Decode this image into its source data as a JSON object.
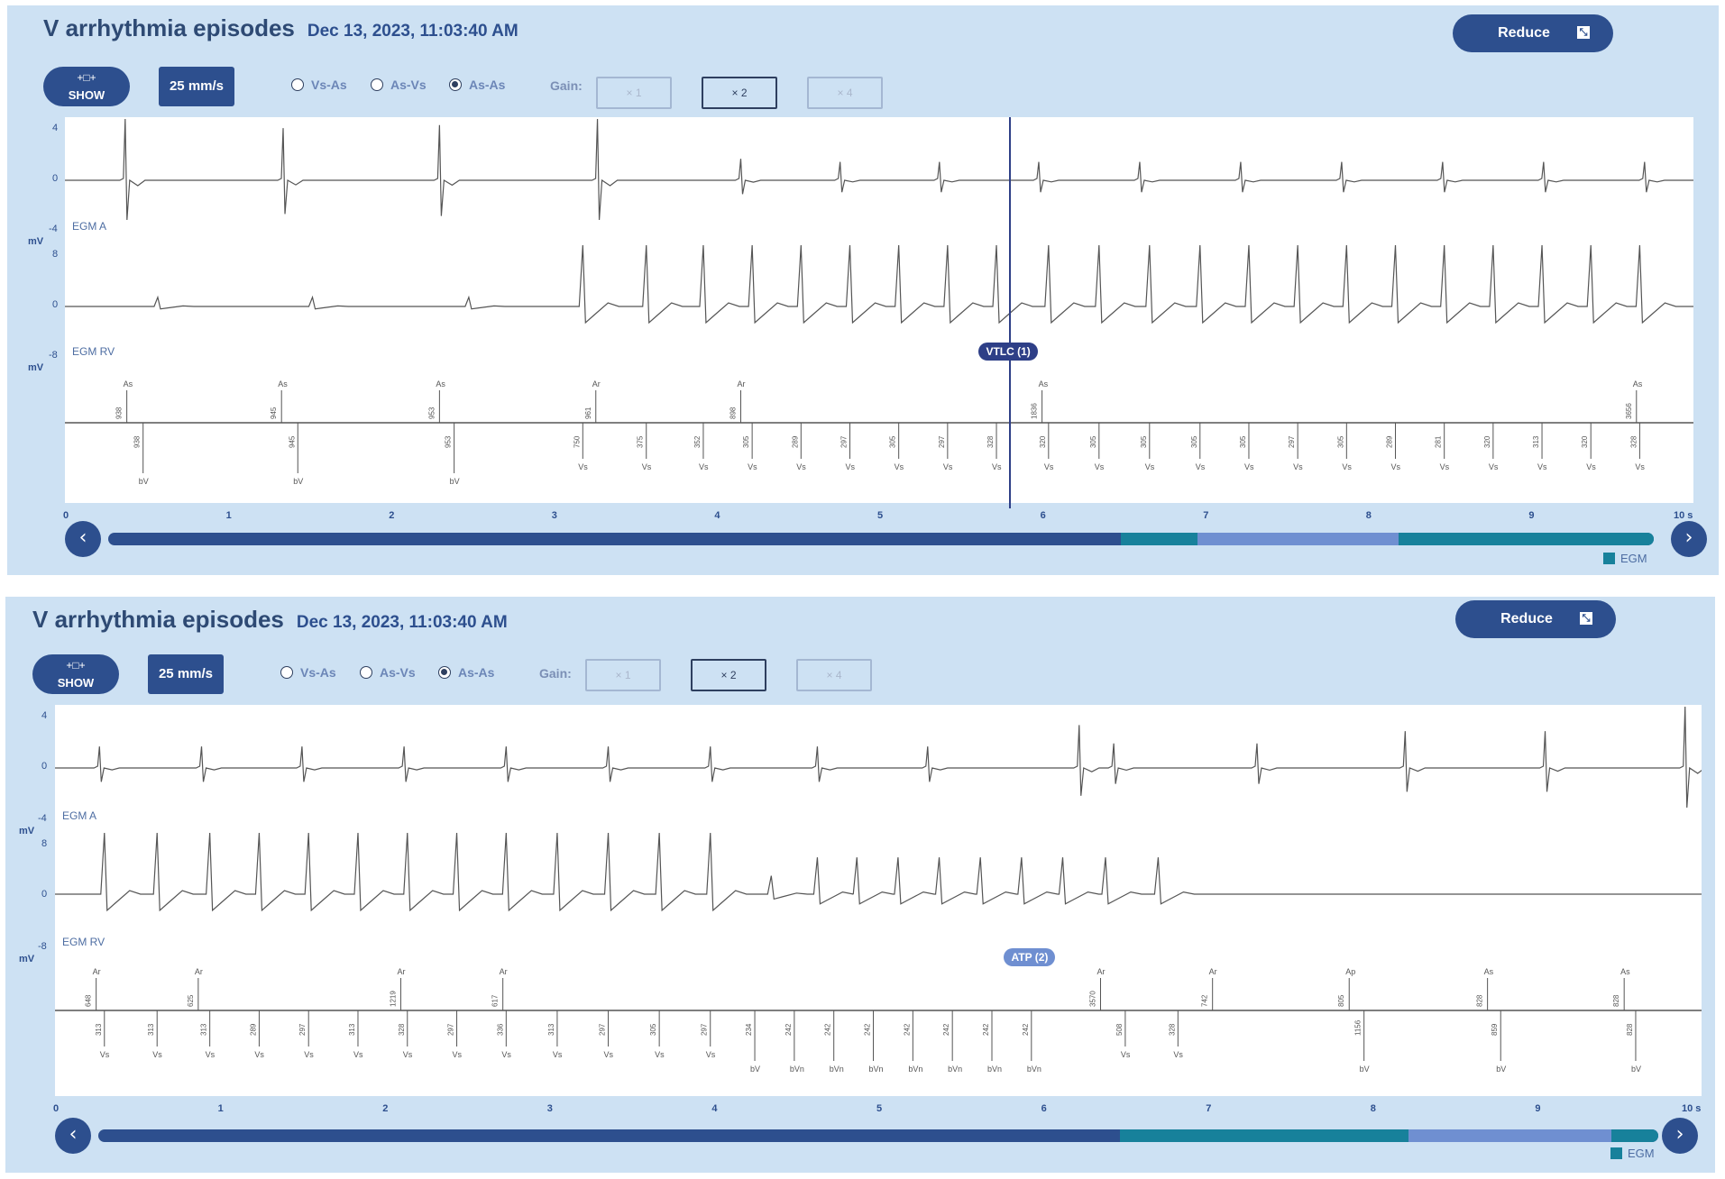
{
  "panels": [
    {
      "title": "V arrhythmia episodes",
      "datetime": "Dec 13, 2023, 11:03:40 AM",
      "reduce_label": "Reduce",
      "show_label": "SHOW",
      "speed": "25 mm/s",
      "radios": [
        {
          "label": "Vs-As",
          "selected": false
        },
        {
          "label": "As-Vs",
          "selected": false
        },
        {
          "label": "As-As",
          "selected": true
        }
      ],
      "gain_label": "Gain:",
      "gains": [
        {
          "label": "× 1",
          "selected": false
        },
        {
          "label": "× 2",
          "selected": true
        },
        {
          "label": "× 4",
          "selected": false
        }
      ],
      "egm_a": {
        "label": "EGM A",
        "unit": "mV",
        "ticks": [
          "4",
          "0",
          "-4"
        ]
      },
      "egm_rv": {
        "label": "EGM RV",
        "unit": "mV",
        "ticks": [
          "8",
          "0",
          "-8"
        ]
      },
      "episode_label": "VTLC (1)",
      "episode_time": 5.8,
      "time_ticks": [
        "0",
        "1",
        "2",
        "3",
        "4",
        "5",
        "6",
        "7",
        "8",
        "9",
        "10 s"
      ],
      "progress": {
        "dark_end": 0.655,
        "teal_end": 0.705,
        "light_end": 0.835
      },
      "legend": "EGM",
      "colors": {
        "panel": "#cde1f3",
        "accent": "#2d4f8e",
        "teal": "#17819b",
        "light": "#6f8fd1"
      },
      "atrial_beats": [
        0.37,
        1.34,
        2.3,
        3.27,
        4.15,
        4.76,
        5.37,
        5.98,
        6.6,
        7.22,
        7.84,
        8.46,
        9.08,
        9.7
      ],
      "atrial_amps": [
        1.0,
        0.85,
        0.9,
        1.0,
        0.35,
        0.3,
        0.3,
        0.3,
        0.3,
        0.3,
        0.3,
        0.3,
        0.3,
        0.3
      ],
      "rv_beats": [
        0.57,
        1.52,
        2.48,
        3.18,
        3.57,
        3.92,
        4.22,
        4.52,
        4.82,
        5.12,
        5.42,
        5.72,
        6.04,
        6.35,
        6.66,
        6.97,
        7.27,
        7.57,
        7.87,
        8.17,
        8.47,
        8.77,
        9.07,
        9.37,
        9.67
      ],
      "rv_amps": [
        0.15,
        0.15,
        0.15,
        1,
        1,
        1,
        1,
        1,
        1,
        1,
        1,
        1,
        1,
        1,
        1,
        1,
        1,
        1,
        1,
        1,
        1,
        1,
        1,
        1,
        1
      ],
      "markers_top": [
        {
          "t": 0.38,
          "label": "As",
          "val": "938"
        },
        {
          "t": 1.33,
          "label": "As",
          "val": "945"
        },
        {
          "t": 2.3,
          "label": "As",
          "val": "953"
        },
        {
          "t": 3.26,
          "label": "Ar",
          "val": "961"
        },
        {
          "t": 4.15,
          "label": "Ar",
          "val": "898"
        },
        {
          "t": 6.0,
          "label": "As",
          "val": "1836"
        },
        {
          "t": 9.65,
          "label": "As",
          "val": "3656"
        }
      ],
      "markers_bot": [
        {
          "t": 0.48,
          "label": "bV",
          "val": "938"
        },
        {
          "t": 1.43,
          "label": "bV",
          "val": "945"
        },
        {
          "t": 2.39,
          "label": "bV",
          "val": "953"
        },
        {
          "t": 3.18,
          "label": "Vs",
          "val": "750"
        },
        {
          "t": 3.57,
          "label": "Vs",
          "val": "375"
        },
        {
          "t": 3.92,
          "label": "Vs",
          "val": "352"
        },
        {
          "t": 4.22,
          "label": "Vs",
          "val": "305"
        },
        {
          "t": 4.52,
          "label": "Vs",
          "val": "289"
        },
        {
          "t": 4.82,
          "label": "Vs",
          "val": "297"
        },
        {
          "t": 5.12,
          "label": "Vs",
          "val": "305"
        },
        {
          "t": 5.42,
          "label": "Vs",
          "val": "297"
        },
        {
          "t": 5.72,
          "label": "Vs",
          "val": "328"
        },
        {
          "t": 6.04,
          "label": "Vs",
          "val": "320"
        },
        {
          "t": 6.35,
          "label": "Vs",
          "val": "305"
        },
        {
          "t": 6.66,
          "label": "Vs",
          "val": "305"
        },
        {
          "t": 6.97,
          "label": "Vs",
          "val": "305"
        },
        {
          "t": 7.27,
          "label": "Vs",
          "val": "305"
        },
        {
          "t": 7.57,
          "label": "Vs",
          "val": "297"
        },
        {
          "t": 7.87,
          "label": "Vs",
          "val": "305"
        },
        {
          "t": 8.17,
          "label": "Vs",
          "val": "289"
        },
        {
          "t": 8.47,
          "label": "Vs",
          "val": "281"
        },
        {
          "t": 8.77,
          "label": "Vs",
          "val": "320"
        },
        {
          "t": 9.07,
          "label": "Vs",
          "val": "313"
        },
        {
          "t": 9.37,
          "label": "Vs",
          "val": "320"
        },
        {
          "t": 9.67,
          "label": "Vs",
          "val": "328"
        }
      ]
    },
    {
      "title": "V arrhythmia episodes",
      "datetime": "Dec 13, 2023, 11:03:40 AM",
      "reduce_label": "Reduce",
      "show_label": "SHOW",
      "speed": "25 mm/s",
      "radios": [
        {
          "label": "Vs-As",
          "selected": false
        },
        {
          "label": "As-Vs",
          "selected": false
        },
        {
          "label": "As-As",
          "selected": true
        }
      ],
      "gain_label": "Gain:",
      "gains": [
        {
          "label": "× 1",
          "selected": false
        },
        {
          "label": "× 2",
          "selected": true
        },
        {
          "label": "× 4",
          "selected": false
        }
      ],
      "egm_a": {
        "label": "EGM A",
        "unit": "mV",
        "ticks": [
          "4",
          "0",
          "-4"
        ]
      },
      "egm_rv": {
        "label": "EGM RV",
        "unit": "mV",
        "ticks": [
          "8",
          "0",
          "-8"
        ]
      },
      "episode_label": "ATP (2)",
      "episode_time": 5.95,
      "time_ticks": [
        "0",
        "1",
        "2",
        "3",
        "4",
        "5",
        "6",
        "7",
        "8",
        "9",
        "10 s"
      ],
      "progress": {
        "dark_end": 0.655,
        "teal_end": 0.84,
        "light_end": 0.97
      },
      "legend": "EGM",
      "colors": {
        "panel": "#cde1f3",
        "accent": "#2d4f8e",
        "teal": "#17819b",
        "light": "#6f8fd1"
      },
      "atrial_beats": [
        0.27,
        0.89,
        1.5,
        2.12,
        2.74,
        3.36,
        3.98,
        4.63,
        5.3,
        6.22,
        6.43,
        7.3,
        8.2,
        9.05,
        9.9
      ],
      "atrial_amps": [
        0.35,
        0.35,
        0.35,
        0.35,
        0.35,
        0.35,
        0.35,
        0.35,
        0.35,
        0.7,
        0.4,
        0.4,
        0.6,
        0.6,
        1.0
      ],
      "rv_beats": [
        0.3,
        0.62,
        0.94,
        1.24,
        1.54,
        1.84,
        2.14,
        2.44,
        2.74,
        3.05,
        3.36,
        3.67,
        3.98,
        4.35,
        4.63,
        4.87,
        5.12,
        5.37,
        5.62,
        5.87,
        6.12,
        6.38,
        6.7
      ],
      "rv_amps": [
        1,
        1,
        1,
        1,
        1,
        1,
        1,
        1,
        1,
        1,
        1,
        1,
        1,
        0.3,
        0.6,
        0.6,
        0.6,
        0.6,
        0.6,
        0.6,
        0.6,
        0.6,
        0.6
      ],
      "markers_top": [
        {
          "t": 0.25,
          "label": "Ar",
          "val": "648"
        },
        {
          "t": 0.87,
          "label": "Ar",
          "val": "625"
        },
        {
          "t": 2.1,
          "label": "Ar",
          "val": "1219"
        },
        {
          "t": 2.72,
          "label": "Ar",
          "val": "617"
        },
        {
          "t": 6.35,
          "label": "Ar",
          "val": "3570"
        },
        {
          "t": 7.03,
          "label": "Ar",
          "val": "742"
        },
        {
          "t": 7.86,
          "label": "Ap",
          "val": "805"
        },
        {
          "t": 8.7,
          "label": "As",
          "val": "828"
        },
        {
          "t": 9.53,
          "label": "As",
          "val": "828"
        }
      ],
      "markers_bot": [
        {
          "t": 0.3,
          "label": "Vs",
          "val": "313"
        },
        {
          "t": 0.62,
          "label": "Vs",
          "val": "313"
        },
        {
          "t": 0.94,
          "label": "Vs",
          "val": "313"
        },
        {
          "t": 1.24,
          "label": "Vs",
          "val": "289"
        },
        {
          "t": 1.54,
          "label": "Vs",
          "val": "297"
        },
        {
          "t": 1.84,
          "label": "Vs",
          "val": "313"
        },
        {
          "t": 2.14,
          "label": "Vs",
          "val": "328"
        },
        {
          "t": 2.44,
          "label": "Vs",
          "val": "297"
        },
        {
          "t": 2.74,
          "label": "Vs",
          "val": "336"
        },
        {
          "t": 3.05,
          "label": "Vs",
          "val": "313"
        },
        {
          "t": 3.36,
          "label": "Vs",
          "val": "297"
        },
        {
          "t": 3.67,
          "label": "Vs",
          "val": "305"
        },
        {
          "t": 3.98,
          "label": "Vs",
          "val": "297"
        },
        {
          "t": 4.25,
          "label": "bV",
          "val": "234"
        },
        {
          "t": 4.49,
          "label": "bVn",
          "val": "242"
        },
        {
          "t": 4.73,
          "label": "bVn",
          "val": "242"
        },
        {
          "t": 4.97,
          "label": "bVn",
          "val": "242"
        },
        {
          "t": 5.21,
          "label": "bVn",
          "val": "242"
        },
        {
          "t": 5.45,
          "label": "bVn",
          "val": "242"
        },
        {
          "t": 5.69,
          "label": "bVn",
          "val": "242"
        },
        {
          "t": 5.93,
          "label": "bVn",
          "val": "242"
        },
        {
          "t": 6.5,
          "label": "Vs",
          "val": "508"
        },
        {
          "t": 6.82,
          "label": "Vs",
          "val": "328"
        },
        {
          "t": 7.95,
          "label": "bV",
          "val": "1156"
        },
        {
          "t": 8.78,
          "label": "bV",
          "val": "859"
        },
        {
          "t": 9.6,
          "label": "bV",
          "val": "828"
        }
      ]
    }
  ]
}
